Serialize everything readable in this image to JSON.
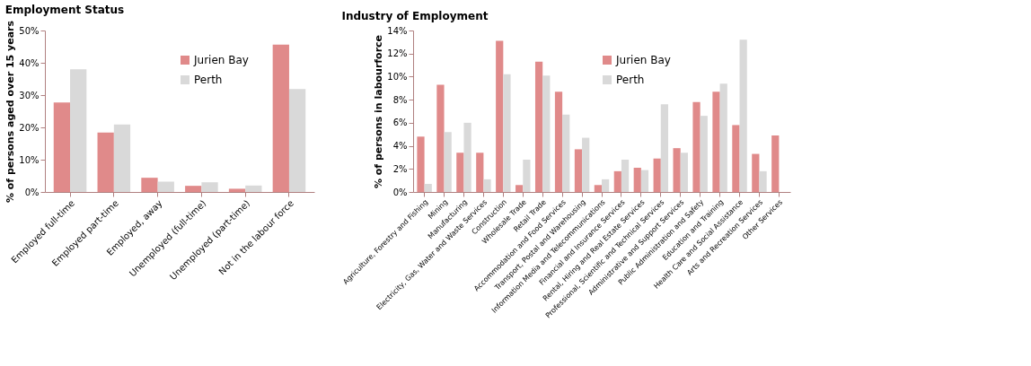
{
  "chart_data": [
    {
      "type": "bar",
      "title": "Employment Status",
      "ylabel": "% of persons aged over 15 years",
      "categories": [
        "Employed full-time",
        "Employed part-time",
        "Employed, away",
        "Unemployed (full-time)",
        "Unemployed (part-time)",
        "Not in the labour force"
      ],
      "series": [
        {
          "name": "Jurien Bay",
          "color": "#e08a8a",
          "values": [
            27.7,
            18.4,
            4.4,
            1.9,
            1.0,
            45.6
          ]
        },
        {
          "name": "Perth",
          "color": "#d9d9d9",
          "values": [
            38.0,
            20.9,
            3.2,
            3.0,
            2.0,
            31.9
          ]
        }
      ],
      "ylim": [
        0,
        50
      ],
      "yticks": [
        {
          "value": 0,
          "label": "0%"
        },
        {
          "value": 10,
          "label": "10%"
        },
        {
          "value": 20,
          "label": "20%"
        },
        {
          "value": 30,
          "label": "30%"
        },
        {
          "value": 40,
          "label": "40%"
        },
        {
          "value": 50,
          "label": "50%"
        }
      ],
      "grid": false,
      "legend": "top"
    },
    {
      "type": "bar",
      "title": "Industry of Employment",
      "ylabel": "% of persons in labourforce",
      "categories": [
        "Agriculture, Forestry and Fishing",
        "Mining",
        "Manufacturing",
        "Electricity, Gas, Water and Waste Services",
        "Construction",
        "Wholesale Trade",
        "Retail Trade",
        "Accommodation and Food Services",
        "Transport, Postal and Warehousing",
        "Information Media and Telecommunications",
        "Financial and Insurance Services",
        "Rental, Hiring and Real Estate Services",
        "Professional, Scientific and Technical Services",
        "Administrative and Support Services",
        "Public Administration and Safety",
        "Education and Training",
        "Health Care and Social Assistance",
        "Arts and Recreation Services",
        "Other Services"
      ],
      "series": [
        {
          "name": "Jurien Bay",
          "color": "#e08a8a",
          "values": [
            4.8,
            9.3,
            3.4,
            3.4,
            13.1,
            0.6,
            11.3,
            8.7,
            3.7,
            0.6,
            1.8,
            2.1,
            2.9,
            3.8,
            7.8,
            8.7,
            5.8,
            3.3,
            4.9
          ]
        },
        {
          "name": "Perth",
          "color": "#d9d9d9",
          "values": [
            0.7,
            5.2,
            6.0,
            1.1,
            10.2,
            2.8,
            10.1,
            6.7,
            4.7,
            1.1,
            2.8,
            1.9,
            7.6,
            3.4,
            6.6,
            9.4,
            13.2,
            1.8,
            null
          ]
        }
      ],
      "ylim": [
        0,
        14
      ],
      "yticks": [
        {
          "value": 0,
          "label": "0%"
        },
        {
          "value": 2,
          "label": "2%"
        },
        {
          "value": 4,
          "label": "4%"
        },
        {
          "value": 6,
          "label": "6%"
        },
        {
          "value": 8,
          "label": "8%"
        },
        {
          "value": 10,
          "label": "10%"
        },
        {
          "value": 12,
          "label": "12%"
        },
        {
          "value": 14,
          "label": "14%"
        }
      ],
      "grid": false,
      "legend": "top"
    }
  ]
}
